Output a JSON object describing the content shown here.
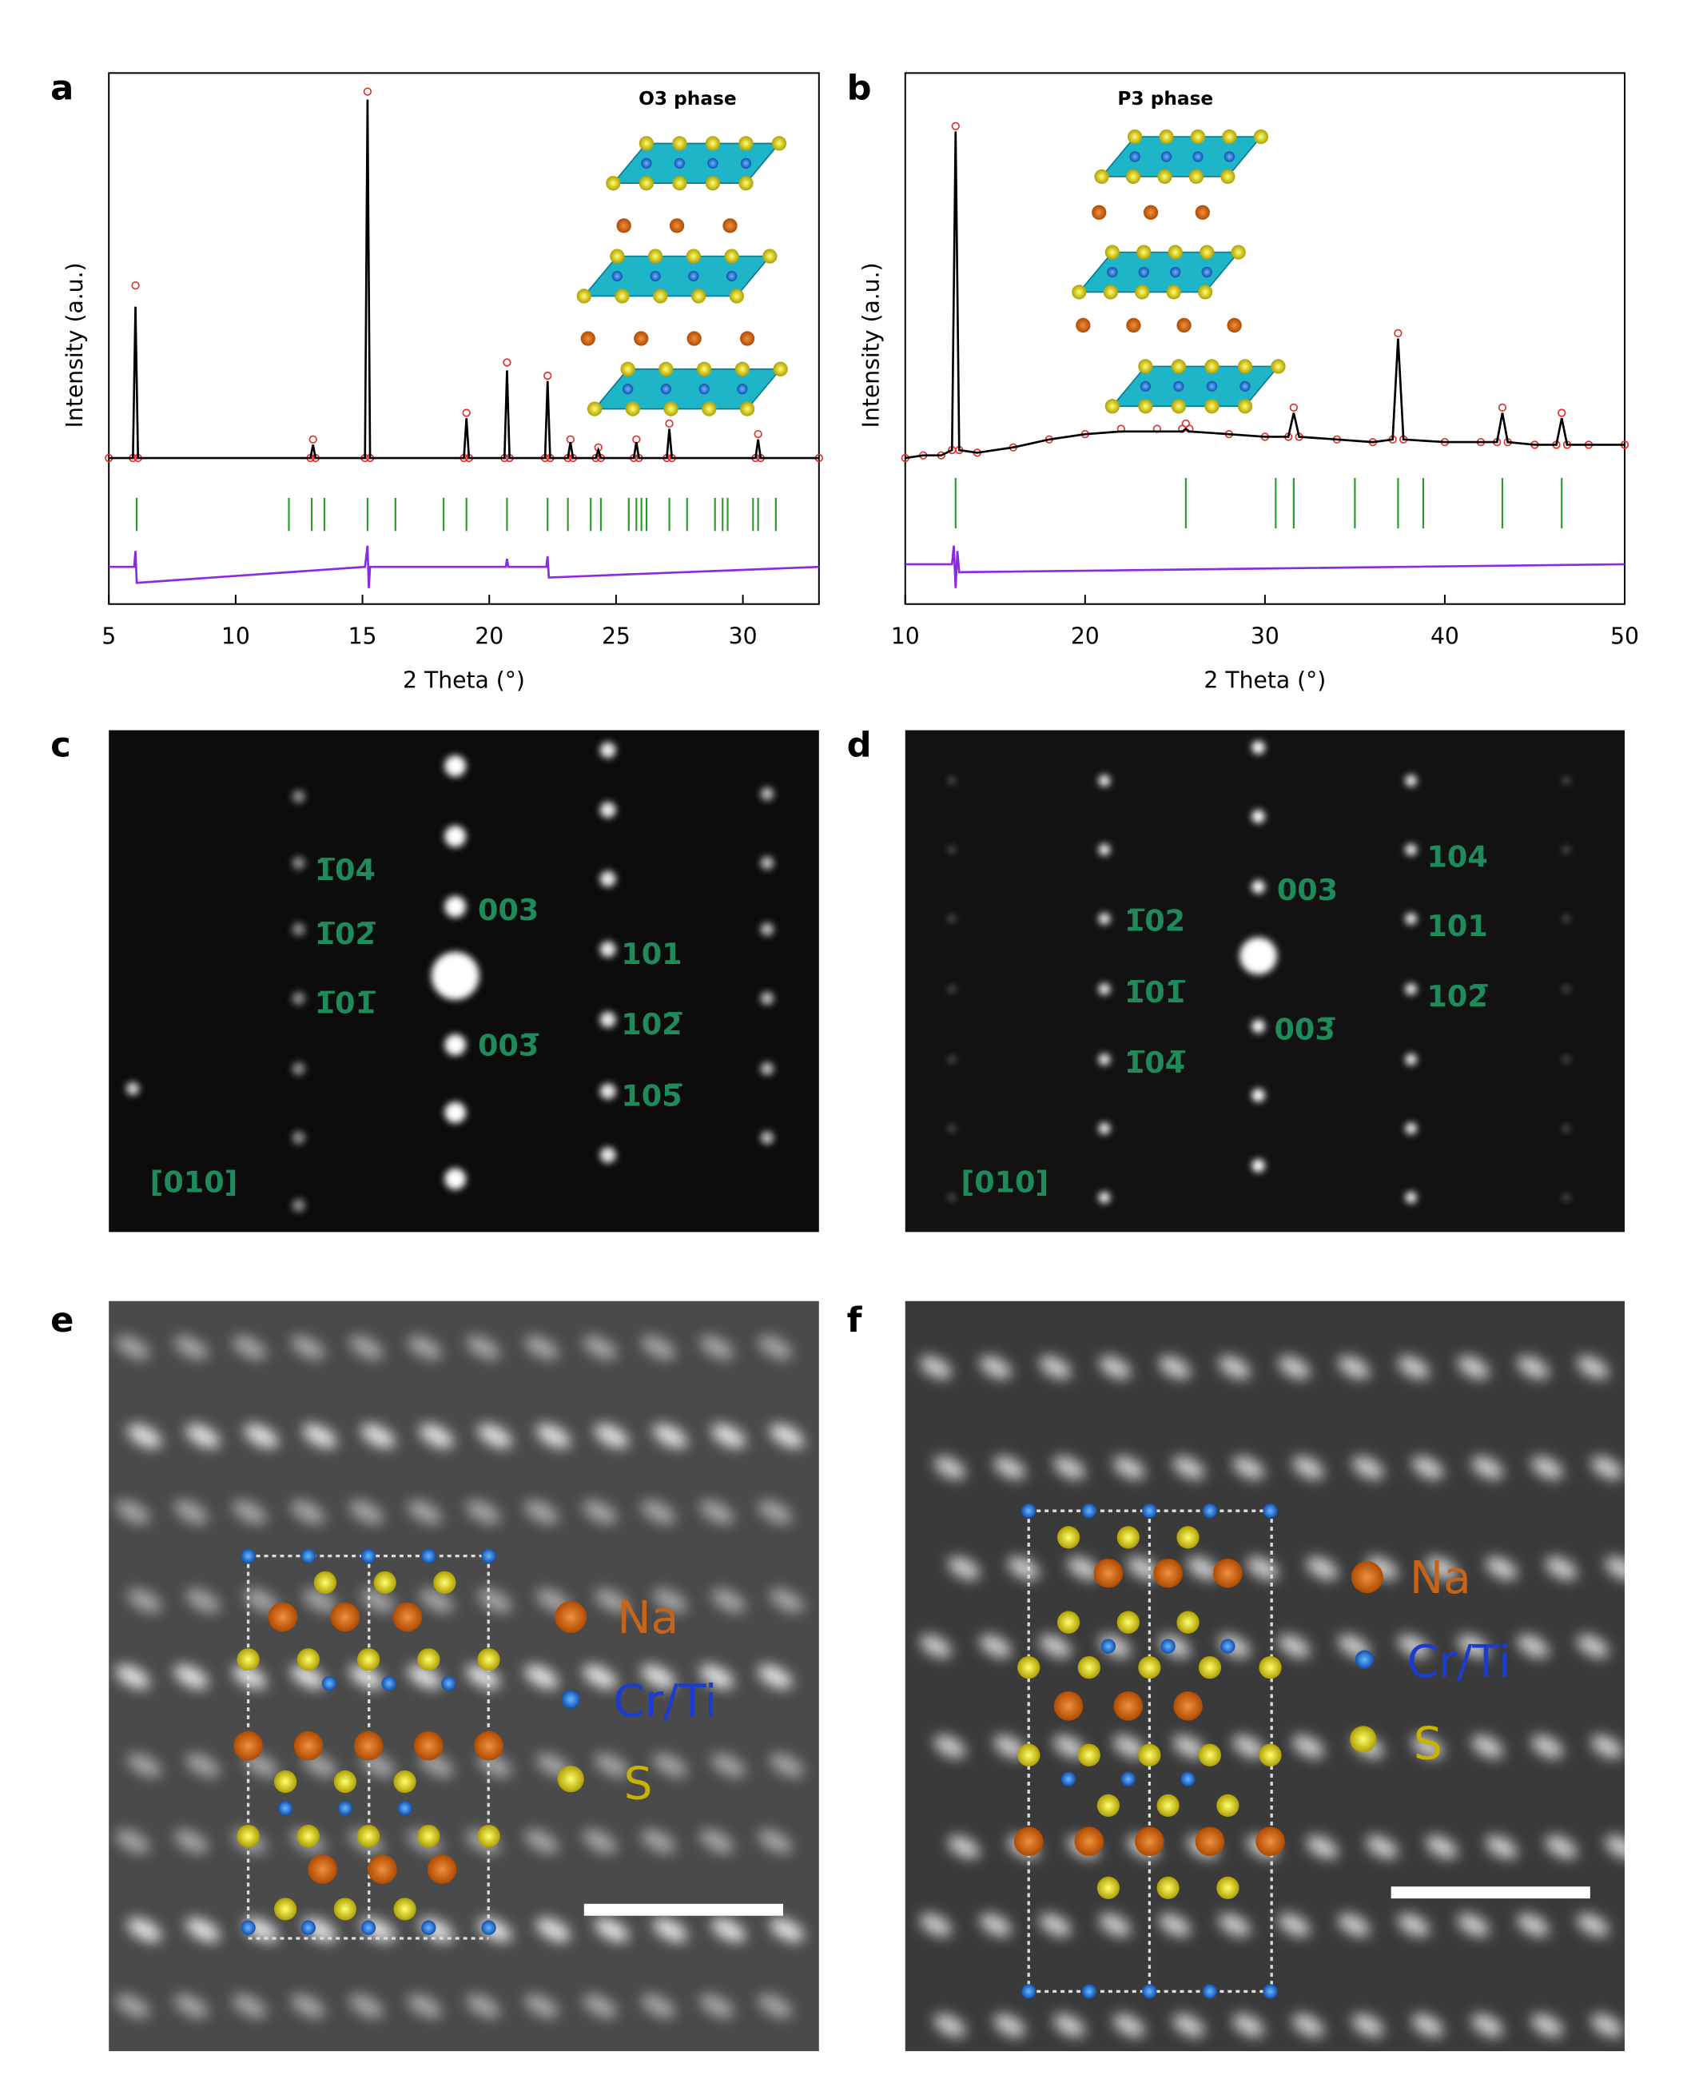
{
  "panel_labels": [
    "a",
    "b",
    "c",
    "d",
    "e",
    "f"
  ],
  "chart_data": [
    {
      "type": "line",
      "title": "O3 phase",
      "x_label": "2 Theta (°)",
      "y_label": "Intensity (a.u.)",
      "xlim": [
        5,
        33
      ],
      "xticks": [
        5,
        10,
        15,
        20,
        25,
        30
      ],
      "ylim": [
        0,
        100
      ],
      "series": [
        {
          "color": "#e0302a",
          "marker": "circle",
          "x": [
            5,
            5.95,
            6.05,
            6.15,
            12.95,
            13.05,
            13.15,
            15.1,
            15.2,
            15.3,
            19.0,
            19.1,
            19.2,
            20.6,
            20.7,
            20.8,
            22.2,
            22.3,
            22.4,
            23.1,
            23.2,
            23.3,
            24.2,
            24.3,
            24.4,
            25.7,
            25.8,
            25.9,
            27.0,
            27.1,
            27.2,
            30.5,
            30.6,
            30.7,
            33
          ],
          "values": [
            27.5,
            27.5,
            60,
            27.5,
            27.5,
            31,
            27.5,
            27.5,
            96.5,
            27.5,
            27.5,
            36,
            27.5,
            27.5,
            45.5,
            27.5,
            27.5,
            43,
            27.5,
            27.5,
            31,
            27.5,
            27.5,
            29.5,
            27.5,
            27.5,
            31,
            27.5,
            27.5,
            34,
            27.5,
            27.5,
            32,
            27.5,
            27.5
          ]
        },
        {
          "color": "#000000",
          "marker": "line",
          "x": [
            5,
            5.95,
            6.05,
            6.15,
            12.95,
            13.05,
            13.15,
            15.1,
            15.2,
            15.3,
            19.0,
            19.1,
            19.2,
            20.6,
            20.7,
            20.8,
            22.2,
            22.3,
            22.4,
            23.1,
            23.2,
            23.3,
            24.2,
            24.3,
            24.4,
            25.7,
            25.8,
            25.9,
            27.0,
            27.1,
            27.2,
            30.5,
            30.6,
            30.7,
            33
          ],
          "values": [
            27.5,
            27.5,
            56,
            27.5,
            27.5,
            30,
            27.5,
            27.5,
            95,
            27.5,
            27.5,
            35,
            27.5,
            27.5,
            44,
            27.5,
            27.5,
            42,
            27.5,
            27.5,
            30.5,
            27.5,
            27.5,
            29,
            27.5,
            27.5,
            30.5,
            27.5,
            27.5,
            33,
            27.5,
            27.5,
            31,
            27.5,
            27.5
          ]
        },
        {
          "color": "#8a2be2",
          "marker": "line",
          "x": [
            5,
            6.0,
            6.05,
            6.1,
            15.1,
            15.2,
            15.25,
            15.3,
            20.65,
            20.7,
            20.75,
            22.25,
            22.3,
            22.35,
            33
          ],
          "values": [
            7,
            7,
            10,
            4,
            7,
            11,
            3,
            7,
            7,
            8.5,
            7,
            7,
            9,
            5,
            7
          ]
        }
      ],
      "bragg": {
        "color": "#2a9a2a",
        "x": [
          6.1,
          12.1,
          13.0,
          13.5,
          15.2,
          16.3,
          18.2,
          19.1,
          20.7,
          22.3,
          23.1,
          24.0,
          24.4,
          25.5,
          25.8,
          26.0,
          26.2,
          27.1,
          27.8,
          28.9,
          29.2,
          29.4,
          30.4,
          30.6,
          31.3
        ]
      }
    },
    {
      "type": "line",
      "title": "P3 phase",
      "x_label": "2 Theta (°)",
      "y_label": "Intensity (a.u.)",
      "xlim": [
        10,
        50
      ],
      "xticks": [
        10,
        20,
        30,
        40,
        50
      ],
      "ylim": [
        0,
        100
      ],
      "series": [
        {
          "color": "#e0302a",
          "marker": "circle",
          "x": [
            10,
            11,
            12,
            12.6,
            12.8,
            13.0,
            14,
            16,
            18,
            20,
            22,
            24,
            25.4,
            25.6,
            25.8,
            28,
            30,
            31.3,
            31.6,
            31.9,
            34,
            36,
            37.1,
            37.4,
            37.7,
            40,
            42,
            42.9,
            43.2,
            43.5,
            45,
            46.2,
            46.5,
            46.8,
            48,
            50
          ],
          "values": [
            27.5,
            28,
            28,
            29,
            90,
            29,
            28.5,
            29.5,
            31,
            32,
            33,
            33,
            33,
            34,
            33,
            32,
            31.5,
            31.5,
            37,
            31.5,
            31,
            30.5,
            31,
            51,
            31,
            30.5,
            30.5,
            30.5,
            37,
            30.5,
            30,
            30,
            36,
            30,
            30,
            30
          ]
        },
        {
          "color": "#000000",
          "marker": "line",
          "x": [
            10,
            11,
            12,
            12.6,
            12.8,
            13.0,
            14,
            16,
            18,
            20,
            22,
            24,
            25.4,
            25.6,
            25.8,
            28,
            30,
            31.3,
            31.6,
            31.9,
            34,
            36,
            37.1,
            37.4,
            37.7,
            40,
            42,
            42.9,
            43.2,
            43.5,
            45,
            46.2,
            46.5,
            46.8,
            48,
            50
          ],
          "values": [
            27.5,
            28,
            28,
            29,
            89,
            29,
            28.5,
            29.5,
            31,
            32,
            32.5,
            32.5,
            32.5,
            33,
            32.5,
            32,
            31.5,
            31.5,
            36,
            31.5,
            31,
            30.5,
            31,
            50,
            31,
            30.5,
            30.5,
            30.5,
            36,
            30.5,
            30,
            30,
            35,
            30,
            30,
            30
          ]
        },
        {
          "color": "#8a2be2",
          "marker": "line",
          "x": [
            10,
            12.6,
            12.7,
            12.8,
            12.9,
            13.0,
            50
          ],
          "values": [
            7.5,
            7.5,
            11,
            3,
            10,
            6,
            7.5
          ]
        }
      ],
      "bragg": {
        "color": "#2a9a2a",
        "x": [
          12.8,
          25.6,
          30.6,
          31.6,
          35.0,
          37.4,
          38.8,
          43.2,
          46.5
        ]
      }
    }
  ],
  "diffraction": [
    {
      "labels": [
        "1̅04",
        "1̅02̅",
        "1̅01̅",
        "003",
        "003̅",
        "101",
        "102̅",
        "105̅"
      ],
      "zone": "[010]"
    },
    {
      "labels": [
        "003",
        "003̅",
        "1̅02",
        "1̅01̅",
        "1̅04̅",
        "104",
        "101",
        "102̅"
      ],
      "zone": "[010]"
    }
  ],
  "legend": [
    "Na",
    "Cr/Ti",
    "S"
  ]
}
